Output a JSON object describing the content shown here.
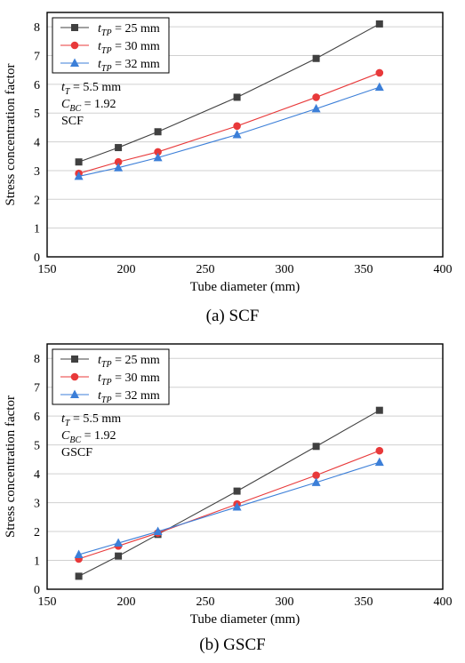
{
  "chart_data": [
    {
      "type": "line",
      "caption": "(a) SCF",
      "xlabel": "Tube diameter (mm)",
      "ylabel": "Stress concentration factor",
      "xlim": [
        150,
        400
      ],
      "ylim": [
        0,
        8.5
      ],
      "xticks": [
        150,
        200,
        250,
        300,
        350,
        400
      ],
      "yticks": [
        0,
        1,
        2,
        3,
        4,
        5,
        6,
        7,
        8
      ],
      "grid": "horizontal",
      "legend_position": "top-left",
      "annotations": [
        {
          "base": "t",
          "sub": "T",
          "rest": " = 5.5 mm"
        },
        {
          "base": "C",
          "sub": "BC",
          "rest": " = 1.92"
        },
        {
          "base": "SCF",
          "sub": "",
          "rest": ""
        }
      ],
      "x": [
        170,
        195,
        220,
        270,
        320,
        360
      ],
      "series": [
        {
          "name_base": "t",
          "name_sub": "TP",
          "name_rest": " = 25 mm",
          "marker": "square",
          "color": "#404040",
          "values": [
            3.3,
            3.8,
            4.35,
            5.55,
            6.9,
            8.1
          ]
        },
        {
          "name_base": "t",
          "name_sub": "TP",
          "name_rest": " = 30 mm",
          "marker": "circle",
          "color": "#e8393a",
          "values": [
            2.9,
            3.3,
            3.65,
            4.55,
            5.55,
            6.4
          ]
        },
        {
          "name_base": "t",
          "name_sub": "TP",
          "name_rest": " = 32 mm",
          "marker": "triangle",
          "color": "#3c7fd8",
          "values": [
            2.8,
            3.1,
            3.45,
            4.25,
            5.15,
            5.9
          ]
        }
      ]
    },
    {
      "type": "line",
      "caption": "(b) GSCF",
      "xlabel": "Tube diameter (mm)",
      "ylabel": "Stress concentration factor",
      "xlim": [
        150,
        400
      ],
      "ylim": [
        0,
        8.5
      ],
      "xticks": [
        150,
        200,
        250,
        300,
        350,
        400
      ],
      "yticks": [
        0,
        1,
        2,
        3,
        4,
        5,
        6,
        7,
        8
      ],
      "grid": "horizontal",
      "legend_position": "top-left",
      "annotations": [
        {
          "base": "t",
          "sub": "T",
          "rest": " = 5.5 mm"
        },
        {
          "base": "C",
          "sub": "BC",
          "rest": " = 1.92"
        },
        {
          "base": "GSCF",
          "sub": "",
          "rest": ""
        }
      ],
      "x": [
        170,
        195,
        220,
        270,
        320,
        360
      ],
      "series": [
        {
          "name_base": "t",
          "name_sub": "TP",
          "name_rest": " = 25 mm",
          "marker": "square",
          "color": "#404040",
          "values": [
            0.45,
            1.15,
            1.9,
            3.4,
            4.95,
            6.2
          ]
        },
        {
          "name_base": "t",
          "name_sub": "TP",
          "name_rest": " = 30 mm",
          "marker": "circle",
          "color": "#e8393a",
          "values": [
            1.05,
            1.5,
            1.95,
            2.95,
            3.95,
            4.8
          ]
        },
        {
          "name_base": "t",
          "name_sub": "TP",
          "name_rest": " = 32 mm",
          "marker": "triangle",
          "color": "#3c7fd8",
          "values": [
            1.2,
            1.6,
            2.0,
            2.85,
            3.7,
            4.4
          ]
        }
      ]
    }
  ]
}
